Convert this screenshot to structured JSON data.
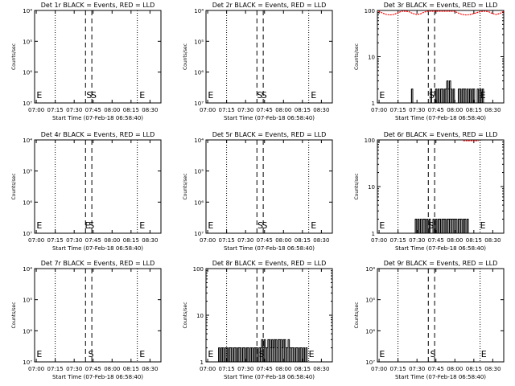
{
  "figure": {
    "time_axis_ticks": [
      "07:00",
      "07:15",
      "07:30",
      "07:45",
      "08:00",
      "08:15",
      "08:30"
    ],
    "time_range_minutes": [
      0,
      100
    ],
    "xlabel": "Start Time (07-Feb-18 06:58:40)",
    "ylabel": "Counts/sec",
    "event_color": "#000000",
    "lld_color": "#ff0000",
    "line_colors": {
      "dotted": "#000000",
      "dashed": "#000000"
    }
  },
  "chart_data": [
    {
      "type": "line",
      "title": "Det 1r BLACK = Events, RED = LLD",
      "yscale": "log",
      "ylim": [
        1e-07,
        0.0001
      ],
      "yticks": [
        "10⁷",
        "10⁶",
        "10⁵",
        "10⁴"
      ],
      "dotted_lines_min": [
        16.3,
        81.3
      ],
      "dashed_lines_min": [
        40.3,
        45.3
      ],
      "markers": [
        {
          "label": "E",
          "t": 1.5
        },
        {
          "label": "S",
          "t": 41.0
        },
        {
          "label": "E",
          "t": 83.0
        },
        {
          "label": "S",
          "t": 44.6
        }
      ],
      "events": [],
      "lld": []
    },
    {
      "type": "line",
      "title": "Det 2r BLACK = Events, RED = LLD",
      "yscale": "log",
      "ylim": [
        1e-07,
        0.0001
      ],
      "yticks": [
        "10⁷",
        "10⁶",
        "10⁵",
        "10⁴"
      ],
      "dotted_lines_min": [
        16.3,
        81.3
      ],
      "dashed_lines_min": [
        40.3,
        45.3
      ],
      "markers": [
        {
          "label": "E",
          "t": 1.5
        },
        {
          "label": "S",
          "t": 40.3
        },
        {
          "label": "E",
          "t": 83.0
        },
        {
          "label": "S",
          "t": 43.8
        }
      ],
      "events": [],
      "lld": []
    },
    {
      "type": "line",
      "title": "Det 3r BLACK = Events, RED = LLD",
      "yscale": "log",
      "ylim": [
        1,
        100
      ],
      "yticks": [
        "1",
        "10",
        "100"
      ],
      "dotted_lines_min": [
        16.3,
        81.3
      ],
      "dashed_lines_min": [
        40.3,
        45.3
      ],
      "markers": [
        {
          "label": "E",
          "t": 1.5
        },
        {
          "label": "S",
          "t": 40.8
        },
        {
          "label": "E",
          "t": 81.3
        }
      ],
      "events": [
        [
          26.0,
          1
        ],
        [
          27.0,
          2
        ],
        [
          28.0,
          1
        ],
        [
          40.0,
          1
        ],
        [
          41.0,
          1
        ],
        [
          42.0,
          2
        ],
        [
          43.0,
          1
        ],
        [
          44.0,
          1
        ],
        [
          45.0,
          1
        ],
        [
          46.0,
          2
        ],
        [
          47.0,
          1
        ],
        [
          48.0,
          2
        ],
        [
          49.0,
          1
        ],
        [
          50.0,
          2
        ],
        [
          51.0,
          2
        ],
        [
          52.0,
          1
        ],
        [
          53.0,
          2
        ],
        [
          54.0,
          2
        ],
        [
          55.0,
          3
        ],
        [
          56.0,
          2
        ],
        [
          57.0,
          3
        ],
        [
          58.0,
          2
        ],
        [
          59.0,
          1
        ],
        [
          60.0,
          2
        ],
        [
          61.0,
          1
        ],
        [
          62.0,
          1
        ],
        [
          63.0,
          1
        ],
        [
          64.0,
          2
        ],
        [
          65.0,
          2
        ],
        [
          66.0,
          1
        ],
        [
          67.0,
          2
        ],
        [
          68.0,
          2
        ],
        [
          69.0,
          2
        ],
        [
          70.0,
          1
        ],
        [
          71.0,
          2
        ],
        [
          72.0,
          1
        ],
        [
          73.0,
          2
        ],
        [
          74.0,
          1
        ],
        [
          75.0,
          2
        ],
        [
          76.0,
          2
        ],
        [
          77.0,
          1
        ],
        [
          78.0,
          1
        ],
        [
          79.0,
          2
        ],
        [
          80.0,
          1
        ],
        [
          81.0,
          2
        ],
        [
          82.0,
          1
        ],
        [
          83.0,
          2
        ],
        [
          84.0,
          1
        ],
        [
          85.0,
          1
        ]
      ],
      "lld": [
        [
          1.0,
          100
        ],
        [
          4.0,
          88
        ],
        [
          7.0,
          82
        ],
        [
          10.0,
          80
        ],
        [
          13.0,
          82
        ],
        [
          16.0,
          88
        ],
        [
          19.0,
          96
        ],
        [
          22.0,
          100
        ],
        [
          25.0,
          94
        ],
        [
          28.0,
          86
        ],
        [
          31.0,
          82
        ],
        [
          34.0,
          84
        ],
        [
          37.0,
          92
        ],
        [
          40.0,
          100
        ],
        [
          43.0,
          100
        ],
        [
          46.0,
          100
        ],
        [
          49.0,
          100
        ],
        [
          52.0,
          100
        ],
        [
          55.0,
          100
        ],
        [
          58.0,
          100
        ],
        [
          61.0,
          96
        ],
        [
          64.0,
          88
        ],
        [
          67.0,
          82
        ],
        [
          70.0,
          80
        ],
        [
          73.0,
          81
        ],
        [
          76.0,
          85
        ],
        [
          79.0,
          90
        ],
        [
          82.0,
          95
        ],
        [
          85.0,
          100
        ],
        [
          88.0,
          94
        ],
        [
          91.0,
          86
        ],
        [
          94.0,
          82
        ],
        [
          97.0,
          86
        ],
        [
          100.0,
          100
        ]
      ]
    },
    {
      "type": "line",
      "title": "Det 4r BLACK = Events, RED = LLD",
      "yscale": "log",
      "ylim": [
        1e-07,
        0.0001
      ],
      "yticks": [
        "10⁷",
        "10⁶",
        "10⁵",
        "10⁴"
      ],
      "dotted_lines_min": [
        16.3,
        81.3
      ],
      "dashed_lines_min": [
        40.3,
        45.3
      ],
      "markers": [
        {
          "label": "E",
          "t": 1.5
        },
        {
          "label": "S",
          "t": 42.8
        },
        {
          "label": "E",
          "t": 83.0
        },
        {
          "label": "E",
          "t": 39.8
        }
      ],
      "events": [],
      "lld": []
    },
    {
      "type": "line",
      "title": "Det 5r BLACK = Events, RED = LLD",
      "yscale": "log",
      "ylim": [
        1e-07,
        0.0001
      ],
      "yticks": [
        "10⁷",
        "10⁶",
        "10⁵",
        "10⁴"
      ],
      "dotted_lines_min": [
        16.3,
        81.3
      ],
      "dashed_lines_min": [
        40.3,
        45.3
      ],
      "markers": [
        {
          "label": "E",
          "t": 1.5
        },
        {
          "label": "S",
          "t": 40.8
        },
        {
          "label": "E",
          "t": 83.0
        },
        {
          "label": "S",
          "t": 44.2
        }
      ],
      "events": [],
      "lld": []
    },
    {
      "type": "line",
      "title": "Det 6r BLACK = Events, RED = LLD",
      "yscale": "log",
      "ylim": [
        1,
        100
      ],
      "yticks": [
        "1",
        "10",
        "100"
      ],
      "dotted_lines_min": [
        16.3,
        81.3
      ],
      "dashed_lines_min": [
        40.3,
        45.3
      ],
      "markers": [
        {
          "label": "E",
          "t": 1.5
        },
        {
          "label": "S",
          "t": 40.3
        },
        {
          "label": "E",
          "t": 81.3
        }
      ],
      "events": [
        [
          30.0,
          2
        ],
        [
          31.0,
          1
        ],
        [
          32.0,
          2
        ],
        [
          33.0,
          1
        ],
        [
          34.0,
          2
        ],
        [
          35.0,
          1
        ],
        [
          36.0,
          2
        ],
        [
          37.0,
          2
        ],
        [
          38.0,
          1
        ],
        [
          39.0,
          2
        ],
        [
          40.0,
          1
        ],
        [
          41.0,
          2
        ],
        [
          42.0,
          1
        ],
        [
          43.0,
          1
        ],
        [
          44.0,
          2
        ],
        [
          45.0,
          1
        ],
        [
          46.0,
          2
        ],
        [
          47.0,
          1
        ],
        [
          48.0,
          2
        ],
        [
          49.0,
          2
        ],
        [
          50.0,
          1
        ],
        [
          51.0,
          2
        ],
        [
          52.0,
          2
        ],
        [
          53.0,
          2
        ],
        [
          54.0,
          1
        ],
        [
          55.0,
          2
        ],
        [
          56.0,
          2
        ],
        [
          57.0,
          2
        ],
        [
          58.0,
          2
        ],
        [
          59.0,
          2
        ],
        [
          60.0,
          2
        ],
        [
          61.0,
          2
        ],
        [
          62.0,
          2
        ],
        [
          63.0,
          1
        ],
        [
          64.0,
          2
        ],
        [
          65.0,
          2
        ],
        [
          66.0,
          2
        ],
        [
          67.0,
          1
        ],
        [
          68.0,
          2
        ],
        [
          69.0,
          2
        ],
        [
          70.0,
          1
        ],
        [
          71.0,
          2
        ],
        [
          72.0,
          1
        ],
        [
          73.0,
          1
        ]
      ],
      "lld": [
        [
          68.0,
          100
        ],
        [
          70.0,
          100
        ],
        [
          72.0,
          100
        ],
        [
          74.0,
          100
        ],
        [
          76.0,
          100
        ],
        [
          78.0,
          100
        ],
        [
          80.0,
          100
        ]
      ]
    },
    {
      "type": "line",
      "title": "Det 7r BLACK = Events, RED = LLD",
      "yscale": "log",
      "ylim": [
        1e-07,
        0.0001
      ],
      "yticks": [
        "10⁷",
        "10⁶",
        "10⁵",
        "10⁴"
      ],
      "dotted_lines_min": [
        16.3,
        81.3
      ],
      "dashed_lines_min": [
        40.3,
        45.3
      ],
      "markers": [
        {
          "label": "E",
          "t": 1.5
        },
        {
          "label": "S",
          "t": 42.4
        },
        {
          "label": "E",
          "t": 83.0
        }
      ],
      "events": [],
      "lld": []
    },
    {
      "type": "line",
      "title": "Det 8r BLACK = Events, RED = LLD",
      "yscale": "log",
      "ylim": [
        1,
        100
      ],
      "yticks": [
        "1",
        "10",
        "100"
      ],
      "dotted_lines_min": [
        16.3,
        81.3
      ],
      "dashed_lines_min": [
        40.3,
        45.3
      ],
      "markers": [
        {
          "label": "E",
          "t": 1.5
        },
        {
          "label": "S",
          "t": 42.0
        },
        {
          "label": "E",
          "t": 81.3
        }
      ],
      "events": [
        [
          10.0,
          2
        ],
        [
          11.0,
          1
        ],
        [
          12.0,
          2
        ],
        [
          13.0,
          2
        ],
        [
          14.0,
          1
        ],
        [
          15.0,
          2
        ],
        [
          16.0,
          2
        ],
        [
          17.0,
          1
        ],
        [
          18.0,
          2
        ],
        [
          19.0,
          2
        ],
        [
          20.0,
          2
        ],
        [
          21.0,
          1
        ],
        [
          22.0,
          2
        ],
        [
          23.0,
          2
        ],
        [
          24.0,
          1
        ],
        [
          25.0,
          2
        ],
        [
          26.0,
          2
        ],
        [
          27.0,
          2
        ],
        [
          28.0,
          1
        ],
        [
          29.0,
          2
        ],
        [
          30.0,
          2
        ],
        [
          31.0,
          1
        ],
        [
          32.0,
          2
        ],
        [
          33.0,
          2
        ],
        [
          34.0,
          1
        ],
        [
          35.0,
          2
        ],
        [
          36.0,
          2
        ],
        [
          37.0,
          1
        ],
        [
          38.0,
          2
        ],
        [
          39.0,
          2
        ],
        [
          40.0,
          2
        ],
        [
          41.0,
          1
        ],
        [
          42.0,
          2
        ],
        [
          43.0,
          2
        ],
        [
          44.0,
          3
        ],
        [
          45.0,
          2
        ],
        [
          46.0,
          3
        ],
        [
          47.0,
          2
        ],
        [
          48.0,
          2
        ],
        [
          49.0,
          3
        ],
        [
          50.0,
          3
        ],
        [
          51.0,
          2
        ],
        [
          52.0,
          3
        ],
        [
          53.0,
          2
        ],
        [
          54.0,
          3
        ],
        [
          55.0,
          3
        ],
        [
          56.0,
          2
        ],
        [
          57.0,
          3
        ],
        [
          58.0,
          3
        ],
        [
          59.0,
          3
        ],
        [
          60.0,
          2
        ],
        [
          61.0,
          3
        ],
        [
          62.0,
          3
        ],
        [
          63.0,
          2
        ],
        [
          64.0,
          2
        ],
        [
          65.0,
          3
        ],
        [
          66.0,
          2
        ],
        [
          67.0,
          2
        ],
        [
          68.0,
          2
        ],
        [
          69.0,
          2
        ],
        [
          70.0,
          1
        ],
        [
          71.0,
          2
        ],
        [
          72.0,
          2
        ],
        [
          73.0,
          1
        ],
        [
          74.0,
          2
        ],
        [
          75.0,
          2
        ],
        [
          76.0,
          1
        ],
        [
          77.0,
          2
        ],
        [
          78.0,
          1
        ],
        [
          79.0,
          2
        ],
        [
          80.0,
          1
        ]
      ],
      "lld": []
    },
    {
      "type": "line",
      "title": "Det 9r BLACK = Events, RED = LLD",
      "yscale": "log",
      "ylim": [
        1e-07,
        0.0001
      ],
      "yticks": [
        "10⁷",
        "10⁶",
        "10⁵",
        "10⁴"
      ],
      "dotted_lines_min": [
        16.3,
        81.3
      ],
      "dashed_lines_min": [
        40.3,
        45.3
      ],
      "markers": [
        {
          "label": "E",
          "t": 1.5
        },
        {
          "label": "S",
          "t": 41.8
        },
        {
          "label": "E",
          "t": 82.0
        }
      ],
      "events": [],
      "lld": []
    }
  ]
}
